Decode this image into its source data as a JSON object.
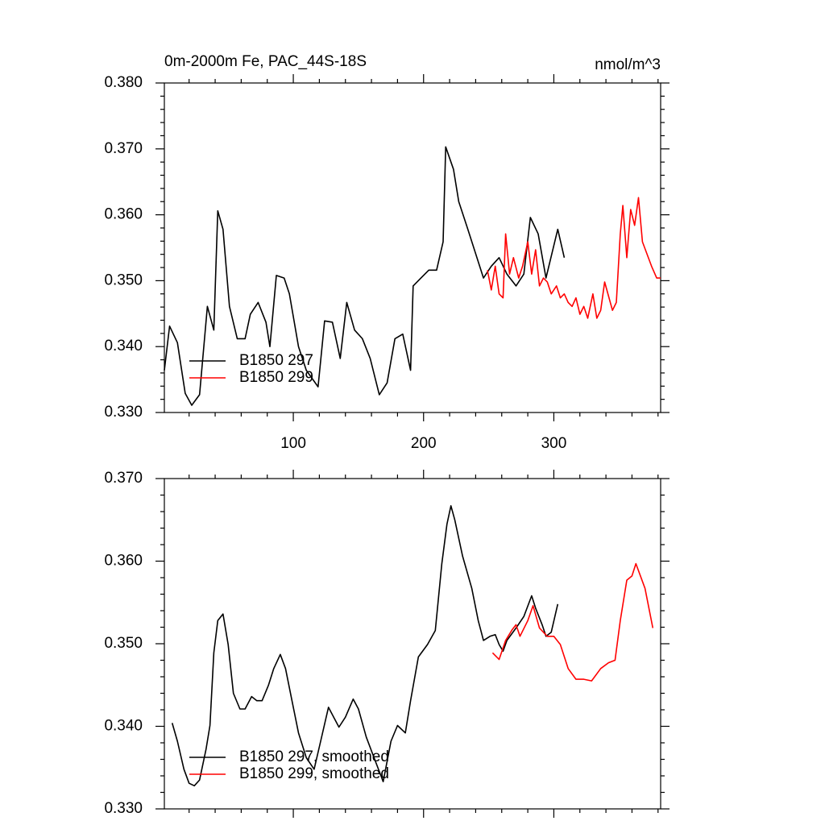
{
  "chart_data": [
    {
      "type": "line",
      "title": "0m-2000m Fe, PAC_44S-18S",
      "units": "nmol/m^3",
      "xlim": [
        1,
        382
      ],
      "ylim": [
        0.33,
        0.38
      ],
      "xticks": [
        100,
        200,
        300
      ],
      "yticks": [
        {
          "value": 0.33,
          "label": "0.330"
        },
        {
          "value": 0.34,
          "label": "0.340"
        },
        {
          "value": 0.35,
          "label": "0.350"
        },
        {
          "value": 0.36,
          "label": "0.360"
        },
        {
          "value": 0.37,
          "label": "0.370"
        },
        {
          "value": 0.38,
          "label": "0.380"
        }
      ],
      "legend": "lower left",
      "series": [
        {
          "name": "B1850 297",
          "color": "#000000",
          "x": [
            1,
            5,
            11,
            17,
            22,
            28,
            34,
            39,
            42,
            46,
            51,
            57,
            63,
            67,
            73,
            79,
            82,
            87,
            93,
            97,
            104,
            110,
            119,
            124,
            130,
            136,
            141,
            147,
            153,
            159,
            166,
            172,
            178,
            184,
            190,
            192,
            198,
            204,
            210,
            215,
            217,
            223,
            227,
            234,
            240,
            246,
            252,
            258,
            264,
            271,
            277,
            282,
            288,
            294,
            303,
            308
          ],
          "values": [
            0.3364,
            0.3431,
            0.3406,
            0.3329,
            0.3311,
            0.3327,
            0.3461,
            0.3425,
            0.3606,
            0.3578,
            0.3461,
            0.3412,
            0.3412,
            0.3449,
            0.3467,
            0.3437,
            0.34,
            0.3508,
            0.3504,
            0.348,
            0.34,
            0.3364,
            0.3339,
            0.3439,
            0.3437,
            0.3382,
            0.3467,
            0.3425,
            0.3412,
            0.3382,
            0.3327,
            0.3345,
            0.3412,
            0.3419,
            0.3364,
            0.3492,
            0.3504,
            0.3516,
            0.3516,
            0.3559,
            0.3703,
            0.3669,
            0.362,
            0.3578,
            0.3541,
            0.3504,
            0.3522,
            0.3535,
            0.351,
            0.3492,
            0.351,
            0.3596,
            0.3571,
            0.3504,
            0.3578,
            0.3535
          ]
        },
        {
          "name": "B1850 299",
          "color": "#ff0000",
          "x": [
            249,
            252,
            255,
            258,
            261,
            263,
            266,
            269,
            273,
            276,
            280,
            283,
            286,
            289,
            292,
            295,
            298,
            302,
            305,
            308,
            311,
            314,
            317,
            320,
            323,
            326,
            330,
            333,
            336,
            339,
            345,
            348,
            351,
            353,
            356,
            359,
            362,
            365,
            368,
            375,
            379,
            382
          ],
          "values": [
            0.3516,
            0.3486,
            0.3522,
            0.348,
            0.3474,
            0.3571,
            0.351,
            0.3535,
            0.3504,
            0.3522,
            0.3559,
            0.351,
            0.3547,
            0.3492,
            0.3504,
            0.3498,
            0.348,
            0.3492,
            0.3474,
            0.348,
            0.3467,
            0.3461,
            0.3474,
            0.3449,
            0.3461,
            0.3443,
            0.348,
            0.3443,
            0.3455,
            0.3498,
            0.3455,
            0.3467,
            0.3571,
            0.3614,
            0.3535,
            0.3608,
            0.3584,
            0.3626,
            0.3559,
            0.3522,
            0.3504,
            0.3504
          ]
        }
      ]
    },
    {
      "type": "line",
      "xlim": [
        1,
        382
      ],
      "ylim": [
        0.33,
        0.37
      ],
      "xticks": [
        100,
        200,
        300
      ],
      "yticks": [
        {
          "value": 0.33,
          "label": "0.330"
        },
        {
          "value": 0.34,
          "label": "0.340"
        },
        {
          "value": 0.35,
          "label": "0.350"
        },
        {
          "value": 0.36,
          "label": "0.360"
        },
        {
          "value": 0.37,
          "label": "0.370"
        }
      ],
      "legend": "lower left",
      "series": [
        {
          "name": "B1850 297, smoothed",
          "color": "#000000",
          "x": [
            7,
            11,
            16,
            20,
            24,
            28,
            33,
            36,
            39,
            42,
            46,
            50,
            54,
            59,
            63,
            68,
            72,
            76,
            81,
            85,
            90,
            94,
            99,
            104,
            110,
            116,
            121,
            127,
            131,
            135,
            140,
            146,
            150,
            156,
            162,
            169,
            175,
            180,
            186,
            190,
            196,
            203,
            209,
            214,
            218,
            221,
            224,
            230,
            237,
            242,
            246,
            251,
            255,
            258,
            261,
            264,
            271,
            277,
            283,
            286,
            291,
            294,
            298,
            303
          ],
          "values": [
            0.3404,
            0.3382,
            0.3348,
            0.3331,
            0.3328,
            0.3335,
            0.3372,
            0.3401,
            0.3489,
            0.3528,
            0.3536,
            0.3499,
            0.344,
            0.3421,
            0.3421,
            0.3436,
            0.3431,
            0.3431,
            0.345,
            0.347,
            0.3487,
            0.347,
            0.3431,
            0.3392,
            0.3362,
            0.3348,
            0.3382,
            0.3423,
            0.3411,
            0.3399,
            0.3411,
            0.3433,
            0.3421,
            0.3387,
            0.3362,
            0.3333,
            0.3382,
            0.3401,
            0.3392,
            0.3431,
            0.3484,
            0.3499,
            0.3516,
            0.3597,
            0.3645,
            0.3667,
            0.365,
            0.3606,
            0.3567,
            0.3528,
            0.3504,
            0.3509,
            0.3511,
            0.3499,
            0.3491,
            0.3504,
            0.3519,
            0.3533,
            0.3558,
            0.3543,
            0.3523,
            0.3509,
            0.3514,
            0.3548
          ]
        },
        {
          "name": "B1850 299, smoothed",
          "color": "#ff0000",
          "x": [
            253,
            258,
            263,
            268,
            271,
            274,
            280,
            284,
            289,
            295,
            300,
            305,
            311,
            317,
            323,
            329,
            336,
            342,
            347,
            351,
            356,
            360,
            363,
            370,
            376
          ],
          "values": [
            0.3489,
            0.3481,
            0.3504,
            0.3517,
            0.3523,
            0.3509,
            0.3528,
            0.3546,
            0.3519,
            0.3509,
            0.3509,
            0.3499,
            0.347,
            0.3457,
            0.3457,
            0.3455,
            0.347,
            0.3477,
            0.348,
            0.3528,
            0.3577,
            0.3582,
            0.3597,
            0.3567,
            0.3519
          ]
        }
      ]
    }
  ]
}
